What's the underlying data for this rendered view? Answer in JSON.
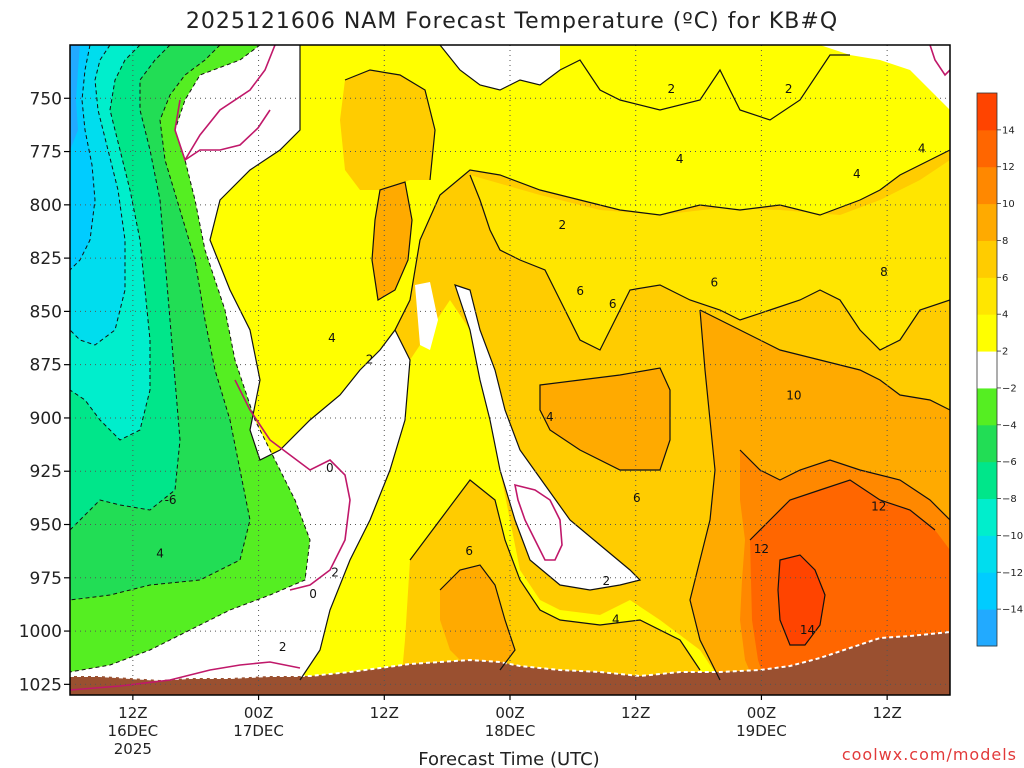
{
  "title": "2025121606 NAM Forecast Temperature (ºC) for KB#Q",
  "watermark": "coolwx.com/models",
  "chart_data": {
    "type": "heatmap",
    "title": "2025121606 NAM Forecast Temperature (ºC) for KB#Q",
    "xlabel": "Forecast Time (UTC)",
    "ylabel": "",
    "y_axis": {
      "unit": "hPa",
      "ticks": [
        750,
        775,
        800,
        825,
        850,
        875,
        900,
        925,
        950,
        975,
        1000,
        1025
      ],
      "range": [
        725,
        1030
      ],
      "inverted": true
    },
    "x_axis": {
      "range_hours_from_init": [
        0,
        84
      ],
      "ticks": [
        {
          "hour": 6,
          "lines": [
            "12Z",
            "16DEC",
            "2025"
          ]
        },
        {
          "hour": 18,
          "lines": [
            "00Z",
            "17DEC"
          ]
        },
        {
          "hour": 30,
          "lines": [
            "12Z"
          ]
        },
        {
          "hour": 42,
          "lines": [
            "00Z",
            "18DEC"
          ]
        },
        {
          "hour": 54,
          "lines": [
            "12Z"
          ]
        },
        {
          "hour": 66,
          "lines": [
            "00Z",
            "19DEC"
          ]
        },
        {
          "hour": 78,
          "lines": [
            "12Z"
          ]
        }
      ]
    },
    "grid": true,
    "colorbar": {
      "ticks": [
        14,
        12,
        10,
        8,
        6,
        4,
        2,
        -2,
        -4,
        -6,
        -8,
        -10,
        -12,
        -14
      ],
      "levels": [
        {
          "range": [
            -16,
            -14
          ],
          "color": "#22aaff"
        },
        {
          "range": [
            -14,
            -12
          ],
          "color": "#00ccff"
        },
        {
          "range": [
            -12,
            -10
          ],
          "color": "#00ddee"
        },
        {
          "range": [
            -10,
            -8
          ],
          "color": "#00eecc"
        },
        {
          "range": [
            -8,
            -6
          ],
          "color": "#00e68a"
        },
        {
          "range": [
            -6,
            -4
          ],
          "color": "#22dd55"
        },
        {
          "range": [
            -4,
            -2
          ],
          "color": "#55ee22"
        },
        {
          "range": [
            -2,
            2
          ],
          "color": "#ffffff"
        },
        {
          "range": [
            2,
            4
          ],
          "color": "#ffff00"
        },
        {
          "range": [
            4,
            6
          ],
          "color": "#ffe600"
        },
        {
          "range": [
            6,
            8
          ],
          "color": "#ffcc00"
        },
        {
          "range": [
            8,
            10
          ],
          "color": "#ffaa00"
        },
        {
          "range": [
            10,
            12
          ],
          "color": "#ff8800"
        },
        {
          "range": [
            12,
            14
          ],
          "color": "#ff6600"
        },
        {
          "range": [
            14,
            16
          ],
          "color": "#ff4400"
        }
      ]
    },
    "contour_labels": [
      {
        "text": "2",
        "hour": 47,
        "p": 810
      },
      {
        "text": "2",
        "hour": 57.4,
        "p": 746
      },
      {
        "text": "2",
        "hour": 68.6,
        "p": 746
      },
      {
        "text": "4",
        "hour": 58.2,
        "p": 779
      },
      {
        "text": "4",
        "hour": 75.1,
        "p": 786
      },
      {
        "text": "4",
        "hour": 81.3,
        "p": 774
      },
      {
        "text": "6",
        "hour": 48.7,
        "p": 841
      },
      {
        "text": "6",
        "hour": 51.8,
        "p": 847
      },
      {
        "text": "6",
        "hour": 61.5,
        "p": 837
      },
      {
        "text": "8",
        "hour": 77.7,
        "p": 832
      },
      {
        "text": "4",
        "hour": 25,
        "p": 863
      },
      {
        "text": "2",
        "hour": 28.6,
        "p": 873
      },
      {
        "text": "10",
        "hour": 69.1,
        "p": 890
      },
      {
        "text": "4",
        "hour": 45.8,
        "p": 900
      },
      {
        "text": "0",
        "hour": 24.8,
        "p": 924
      },
      {
        "text": "6",
        "hour": 54.1,
        "p": 938
      },
      {
        "text": "12",
        "hour": 77.2,
        "p": 942
      },
      {
        "text": "-6",
        "hour": 9.6,
        "p": 939
      },
      {
        "text": "4",
        "hour": 8.6,
        "p": 964
      },
      {
        "text": "6",
        "hour": 38.1,
        "p": 963
      },
      {
        "text": "12",
        "hour": 66,
        "p": 962
      },
      {
        "text": "2",
        "hour": 25.3,
        "p": 973
      },
      {
        "text": "2",
        "hour": 51.2,
        "p": 977
      },
      {
        "text": "0",
        "hour": 23.2,
        "p": 983
      },
      {
        "text": "4",
        "hour": 52.1,
        "p": 995
      },
      {
        "text": "14",
        "hour": 70.4,
        "p": 1000
      },
      {
        "text": "2",
        "hour": 20.3,
        "p": 1008
      }
    ]
  }
}
